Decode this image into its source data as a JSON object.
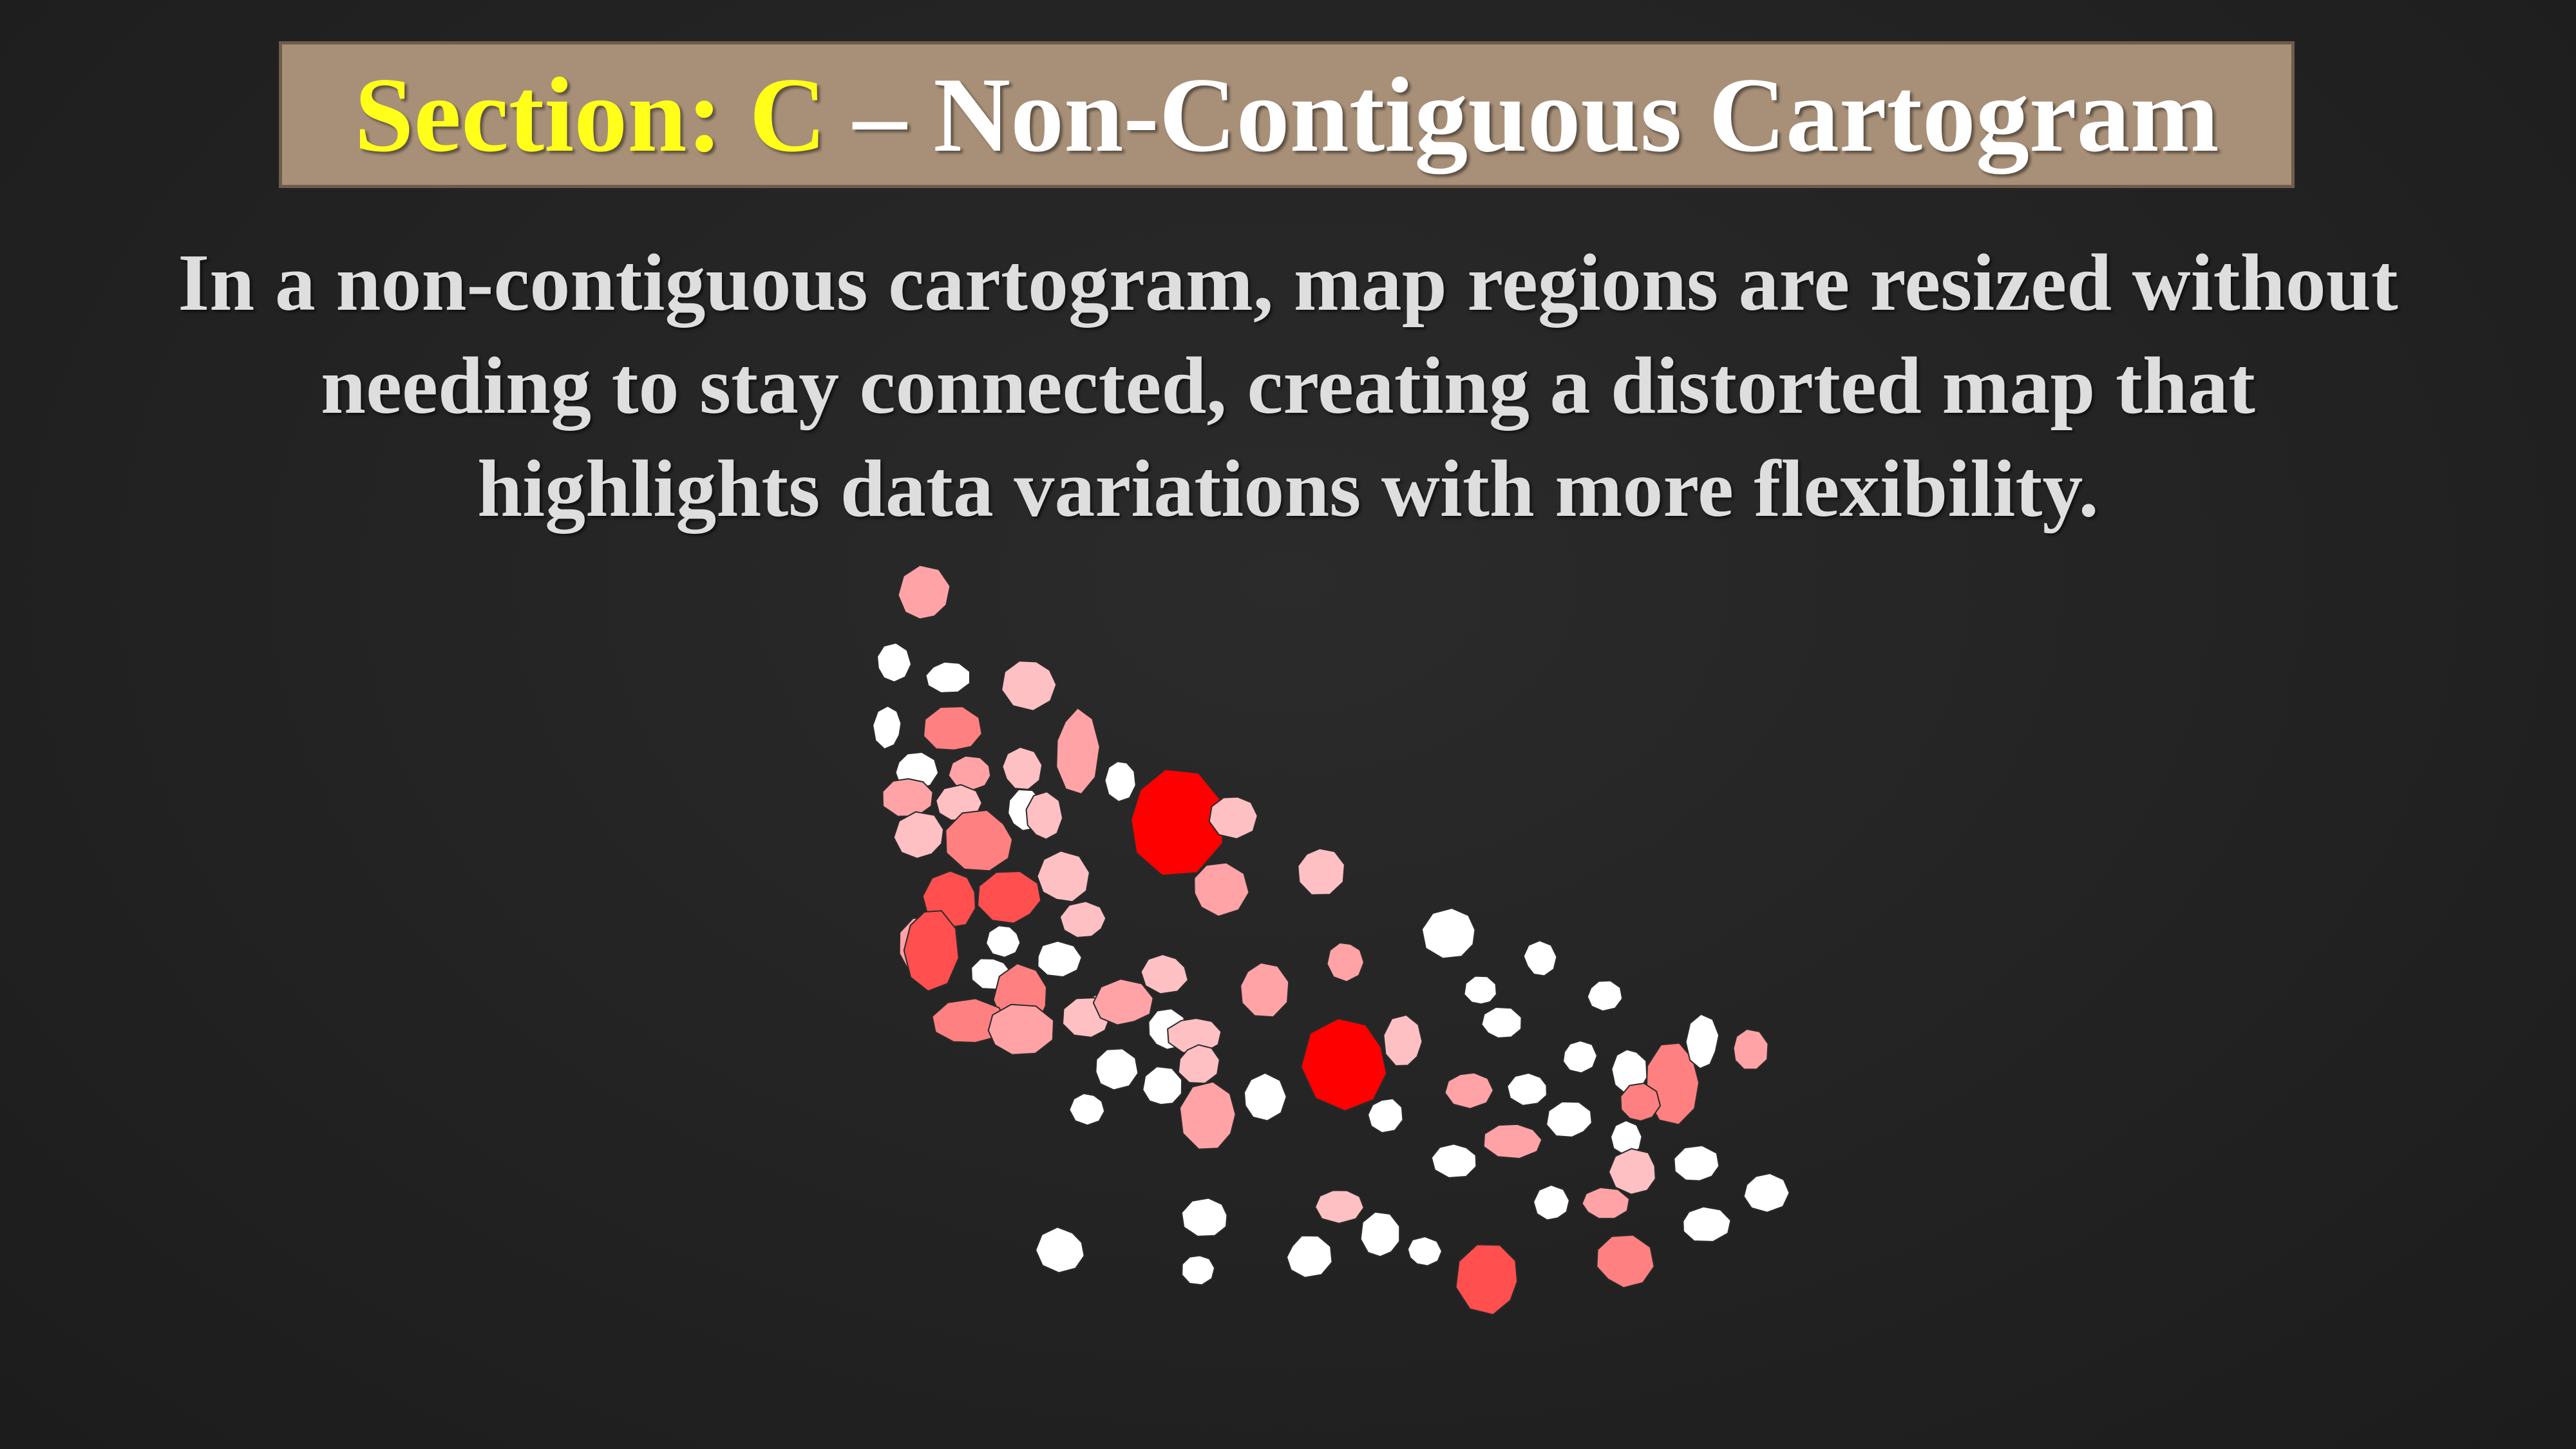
{
  "slide": {
    "title_prefix": "Section: C",
    "title_main": " – Non-Contiguous Cartogram",
    "description_lines": [
      "In a non-contiguous cartogram, map regions are resized without",
      "needing to stay connected, creating a distorted map that",
      "highlights data variations with more flexibility."
    ]
  },
  "colors": {
    "background": "#232323",
    "title_banner": "#a89078",
    "title_prefix": "#ffff1a",
    "title_main": "#ffffff",
    "description": "#dedede",
    "region_scale": [
      "#ffffff",
      "#ffc0c4",
      "#ffa3a7",
      "#ff8080",
      "#ff4f4f",
      "#ff0000"
    ]
  },
  "map": {
    "type": "non-contiguous cartogram",
    "regions": [
      {
        "level": 2
      },
      {
        "level": 0
      },
      {
        "level": 0
      },
      {
        "level": 1
      },
      {
        "level": 0
      },
      {
        "level": 3
      },
      {
        "level": 1
      },
      {
        "level": 0
      },
      {
        "level": 2
      },
      {
        "level": 2
      },
      {
        "level": 1
      },
      {
        "level": 0
      },
      {
        "level": 2
      },
      {
        "level": 0
      },
      {
        "level": 3
      },
      {
        "level": 1
      },
      {
        "level": 1
      },
      {
        "level": 5
      },
      {
        "level": 1
      },
      {
        "level": 4
      },
      {
        "level": 4
      },
      {
        "level": 1
      },
      {
        "level": 2
      },
      {
        "level": 1
      },
      {
        "level": 0
      },
      {
        "level": 1
      },
      {
        "level": 2
      },
      {
        "level": 0
      },
      {
        "level": 4
      },
      {
        "level": 0
      },
      {
        "level": 3
      },
      {
        "level": 3
      },
      {
        "level": 2
      },
      {
        "level": 0
      },
      {
        "level": 1
      },
      {
        "level": 1
      },
      {
        "level": 2
      },
      {
        "level": 0
      },
      {
        "level": 2
      },
      {
        "level": 2
      },
      {
        "level": 0
      },
      {
        "level": 0
      },
      {
        "level": 0
      },
      {
        "level": 0
      },
      {
        "level": 1
      },
      {
        "level": 5
      },
      {
        "level": 1
      },
      {
        "level": 0
      },
      {
        "level": 0
      },
      {
        "level": 0
      },
      {
        "level": 3
      },
      {
        "level": 0
      },
      {
        "level": 3
      },
      {
        "level": 2
      },
      {
        "level": 2
      },
      {
        "level": 0
      },
      {
        "level": 0
      },
      {
        "level": 0
      },
      {
        "level": 0
      },
      {
        "level": 1
      },
      {
        "level": 0
      },
      {
        "level": 2
      },
      {
        "level": 0
      },
      {
        "level": 0
      },
      {
        "level": 0
      },
      {
        "level": 2
      },
      {
        "level": 1
      },
      {
        "level": 0
      },
      {
        "level": 2
      },
      {
        "level": 0
      },
      {
        "level": 0
      },
      {
        "level": 4
      },
      {
        "level": 0
      },
      {
        "level": 3
      },
      {
        "level": 0
      },
      {
        "level": 1
      },
      {
        "level": 0
      },
      {
        "level": 0
      },
      {
        "level": 0
      },
      {
        "level": 0
      },
      {
        "level": 0
      },
      {
        "level": 0
      }
    ]
  }
}
